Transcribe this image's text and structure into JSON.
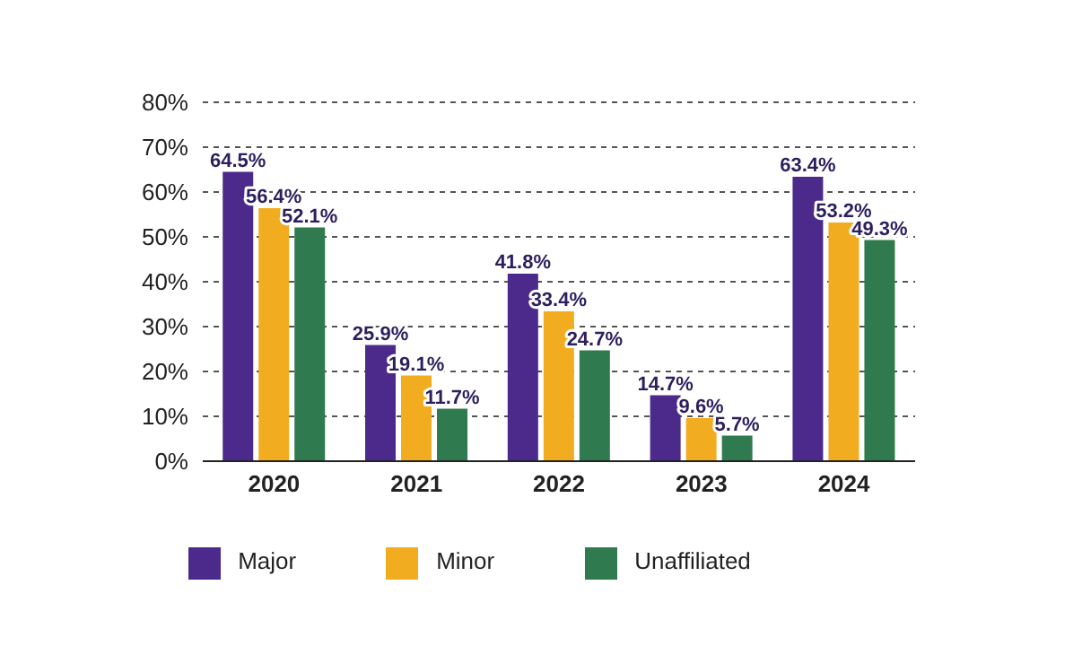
{
  "chart_data": {
    "type": "bar",
    "categories": [
      "2020",
      "2021",
      "2022",
      "2023",
      "2024"
    ],
    "series": [
      {
        "name": "Major",
        "color": "#4b2a8c",
        "values": [
          64.5,
          25.9,
          41.8,
          14.7,
          63.4
        ],
        "value_labels": [
          "64.5%",
          "25.9%",
          "41.8%",
          "14.7%",
          "63.4%"
        ]
      },
      {
        "name": "Minor",
        "color": "#f2ac1f",
        "values": [
          56.4,
          19.1,
          33.4,
          9.6,
          53.2
        ],
        "value_labels": [
          "56.4%",
          "19.1%",
          "33.4%",
          "9.6%",
          "53.2%"
        ]
      },
      {
        "name": "Unaffiliated",
        "color": "#2f7a4e",
        "values": [
          52.1,
          11.7,
          24.7,
          5.7,
          49.3
        ],
        "value_labels": [
          "52.1%",
          "11.7%",
          "24.7%",
          "5.7%",
          "49.3%"
        ]
      }
    ],
    "ylim": [
      0,
      80
    ],
    "yticks": [
      {
        "value": 0,
        "label": "0%"
      },
      {
        "value": 10,
        "label": "10%"
      },
      {
        "value": 20,
        "label": "20%"
      },
      {
        "value": 30,
        "label": "30%"
      },
      {
        "value": 40,
        "label": "40%"
      },
      {
        "value": 50,
        "label": "50%"
      },
      {
        "value": 60,
        "label": "60%"
      },
      {
        "value": 70,
        "label": "70%"
      },
      {
        "value": 80,
        "label": "80%"
      }
    ],
    "grid": "y",
    "legend": "bottom"
  }
}
